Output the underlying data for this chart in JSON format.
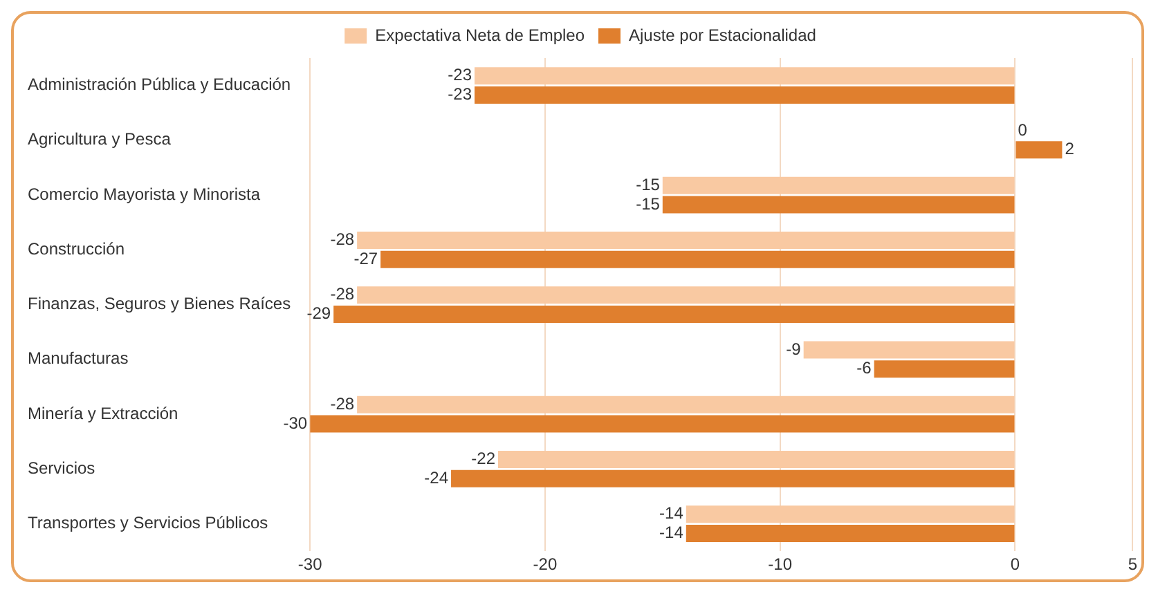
{
  "chart_data": {
    "type": "bar",
    "orientation": "horizontal",
    "categories": [
      "Administración Pública y Educación",
      "Agricultura y Pesca",
      "Comercio Mayorista y Minorista",
      "Construcción",
      "Finanzas, Seguros y Bienes Raíces",
      "Manufacturas",
      "Minería y Extracción",
      "Servicios",
      "Transportes y Servicios Públicos"
    ],
    "series": [
      {
        "name": "Expectativa Neta de Empleo",
        "color": "#f9c9a2",
        "values": [
          -23,
          0,
          -15,
          -28,
          -28,
          -9,
          -28,
          -22,
          -14
        ]
      },
      {
        "name": "Ajuste por Estacionalidad",
        "color": "#e07f2e",
        "values": [
          -23,
          2,
          -15,
          -27,
          -29,
          -6,
          -30,
          -24,
          -14
        ]
      }
    ],
    "xlim": [
      -30,
      5
    ],
    "xticks": [
      -30,
      -20,
      -10,
      0,
      5
    ],
    "grid": "x",
    "legend": "top",
    "data_labels": true
  }
}
